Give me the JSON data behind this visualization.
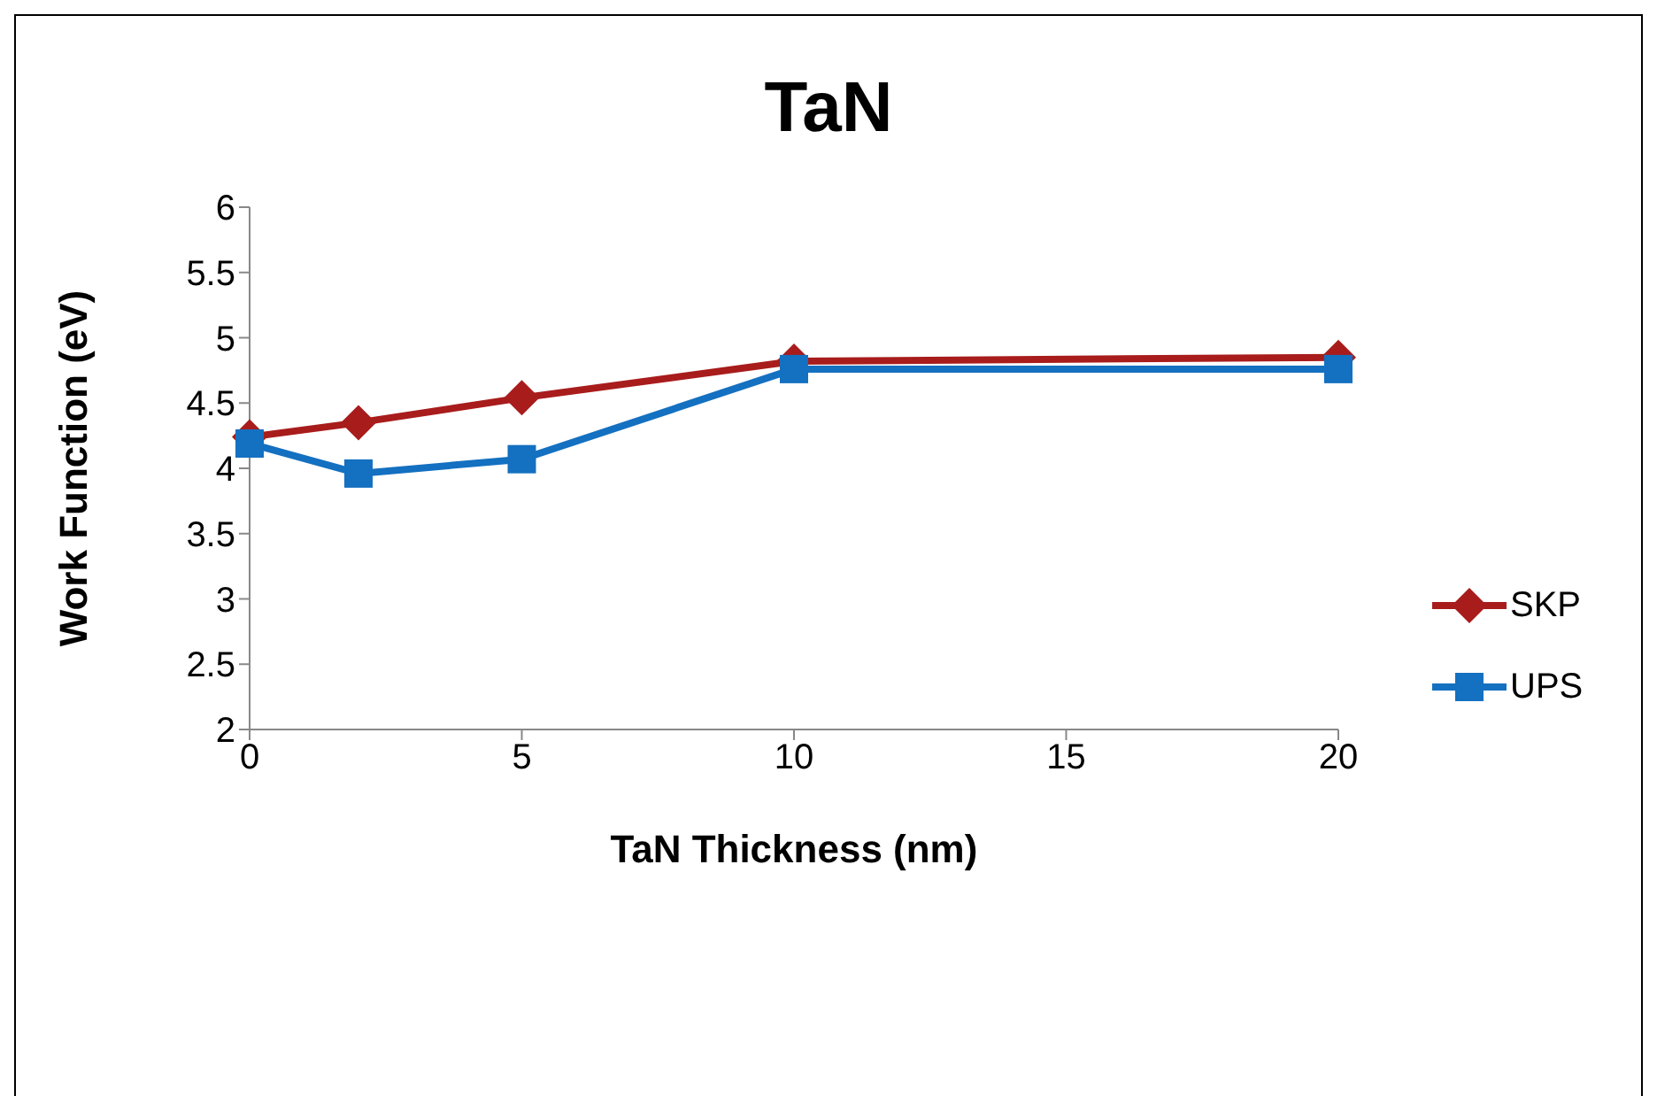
{
  "chart_data": {
    "type": "line",
    "title": "TaN",
    "xlabel": "TaN Thickness (nm)",
    "ylabel": "Work Function (eV)",
    "x": [
      0,
      2,
      5,
      10,
      20
    ],
    "series": [
      {
        "name": "SKP",
        "color": "#a81c1c",
        "marker": "diamond",
        "values": [
          4.24,
          4.35,
          4.54,
          4.82,
          4.85
        ]
      },
      {
        "name": "UPS",
        "color": "#1470c0",
        "marker": "square",
        "values": [
          4.19,
          3.96,
          4.07,
          4.76,
          4.76
        ]
      }
    ],
    "xlim": [
      0,
      20
    ],
    "xticks": [
      0,
      5,
      10,
      15,
      20
    ],
    "ylim": [
      2,
      6
    ],
    "yticks": [
      2,
      2.5,
      3,
      3.5,
      4,
      4.5,
      5,
      5.5,
      6
    ],
    "grid": false,
    "legend": "right"
  }
}
